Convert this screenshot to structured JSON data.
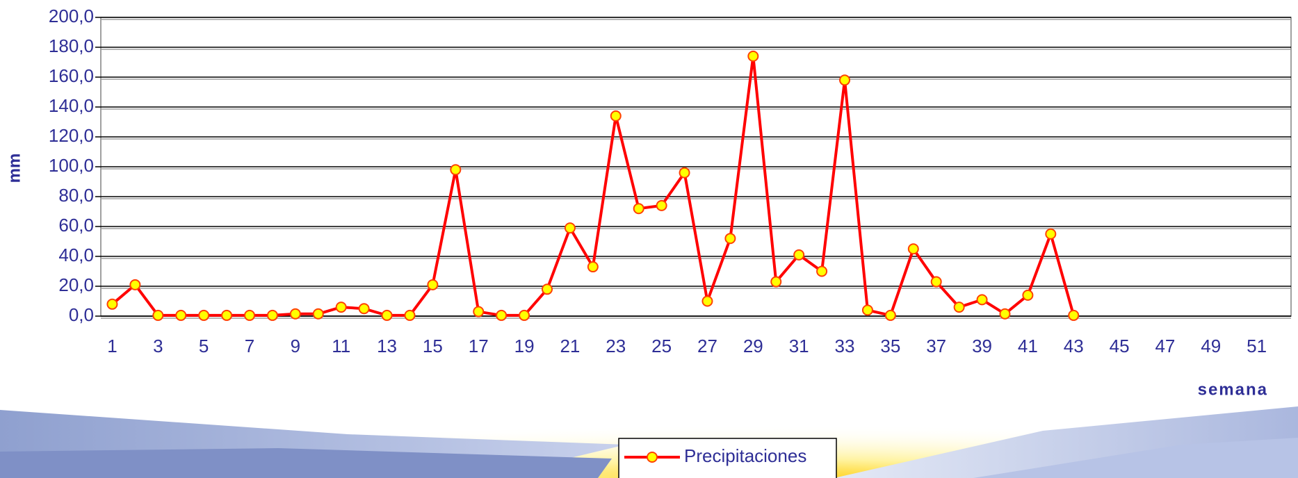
{
  "chart_data": {
    "type": "line",
    "y_label": "mm",
    "x_label": "semana",
    "categories": [
      1,
      null,
      3,
      null,
      5,
      null,
      7,
      null,
      9,
      null,
      11,
      null,
      13,
      null,
      15,
      null,
      17,
      null,
      19,
      null,
      21,
      null,
      23,
      null,
      25,
      null,
      27,
      null,
      29,
      null,
      31,
      null,
      33,
      null,
      35,
      null,
      37,
      null,
      39,
      null,
      41,
      null,
      43,
      null,
      45,
      null,
      47,
      null,
      49,
      null,
      51,
      null
    ],
    "series": [
      {
        "name": "Precipitaciones",
        "color": "#ff0000",
        "marker_color": "#ffff00",
        "values": [
          8,
          21,
          0.5,
          0.5,
          0.5,
          0.5,
          0.5,
          0.5,
          1.5,
          1.5,
          6,
          5,
          0.5,
          0.5,
          21,
          98,
          3,
          0.5,
          0.5,
          18,
          59,
          33,
          134,
          72,
          74,
          96,
          10,
          52,
          174,
          23,
          41,
          30,
          158,
          4,
          0.5,
          45,
          23,
          6,
          11,
          1.5,
          14,
          55,
          0.5,
          null,
          null,
          null,
          null,
          null,
          null,
          null,
          null,
          null
        ]
      }
    ],
    "ylim": [
      0,
      200
    ],
    "yticks": [
      {
        "value": 0,
        "label": "0,0"
      },
      {
        "value": 20,
        "label": "20,0"
      },
      {
        "value": 40,
        "label": "40,0"
      },
      {
        "value": 60,
        "label": "60,0"
      },
      {
        "value": 80,
        "label": "80,0"
      },
      {
        "value": 100,
        "label": "100,0"
      },
      {
        "value": 120,
        "label": "120,0"
      },
      {
        "value": 140,
        "label": "140,0"
      },
      {
        "value": 160,
        "label": "160,0"
      },
      {
        "value": 180,
        "label": "180,0"
      },
      {
        "value": 200,
        "label": "200,0"
      }
    ],
    "grid": true,
    "legend": "bottom"
  }
}
